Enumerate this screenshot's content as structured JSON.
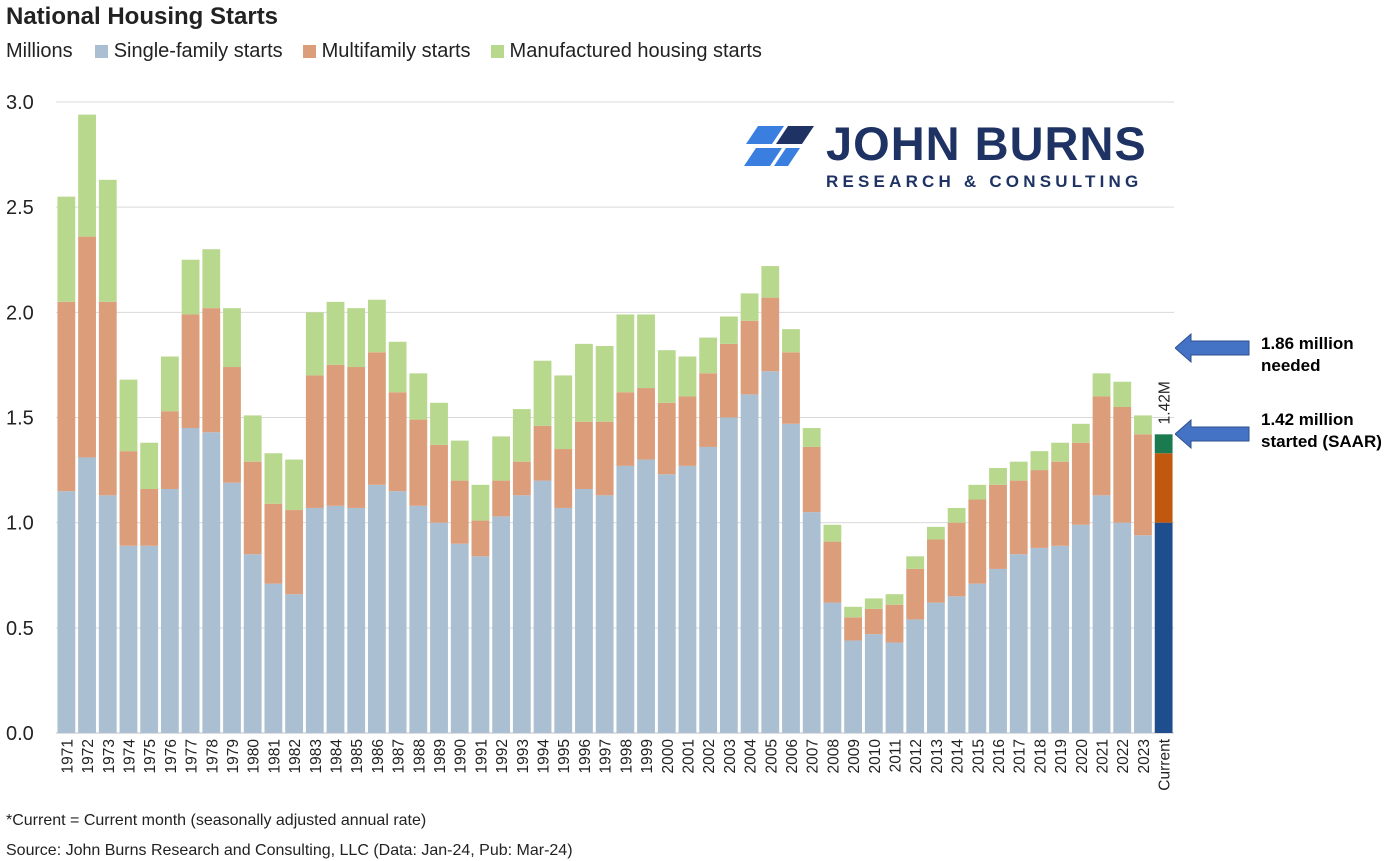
{
  "page": {
    "title": "National Housing Starts",
    "unit_label": "Millions",
    "footnote": "*Current = Current month (seasonally adjusted annual rate)",
    "source": "Source: John Burns Research and Consulting, LLC (Data: Jan-24, Pub: Mar-24)"
  },
  "logo": {
    "name": "JOHN BURNS",
    "subtitle": "RESEARCH & CONSULTING"
  },
  "annotations": {
    "needed_line1": "1.86 million",
    "needed_line2": "needed",
    "started_line1": "1.42 million",
    "started_line2": "started (SAAR)",
    "current_label": "1.42M"
  },
  "colors": {
    "single_family": "#aabfd1",
    "multifamily": "#dc9d7a",
    "manufactured": "#b8d88e",
    "current_single": "#1f4e8e",
    "current_multi": "#c0580f",
    "current_manufactured": "#1b7a50",
    "arrow": "#4472c4",
    "logo_accent": "#3a7fe0"
  },
  "chart_data": {
    "type": "bar",
    "stacked": true,
    "title": "National Housing Starts",
    "ylabel": "Millions",
    "ylim": [
      0,
      3.0
    ],
    "yticks": [
      "0.0",
      "0.5",
      "1.0",
      "1.5",
      "2.0",
      "2.5",
      "3.0"
    ],
    "grid": true,
    "legend_position": "top-left",
    "categories": [
      "1971",
      "1972",
      "1973",
      "1974",
      "1975",
      "1976",
      "1977",
      "1978",
      "1979",
      "1980",
      "1981",
      "1982",
      "1983",
      "1984",
      "1985",
      "1986",
      "1987",
      "1988",
      "1989",
      "1990",
      "1991",
      "1992",
      "1993",
      "1994",
      "1995",
      "1996",
      "1997",
      "1998",
      "1999",
      "2000",
      "2001",
      "2002",
      "2003",
      "2004",
      "2005",
      "2006",
      "2007",
      "2008",
      "2009",
      "2010",
      "2011",
      "2012",
      "2013",
      "2014",
      "2015",
      "2016",
      "2017",
      "2018",
      "2019",
      "2020",
      "2021",
      "2022",
      "2023",
      "Current"
    ],
    "series": [
      {
        "name": "Single-family starts",
        "values": [
          1.15,
          1.31,
          1.13,
          0.89,
          0.89,
          1.16,
          1.45,
          1.43,
          1.19,
          0.85,
          0.71,
          0.66,
          1.07,
          1.08,
          1.07,
          1.18,
          1.15,
          1.08,
          1.0,
          0.9,
          0.84,
          1.03,
          1.13,
          1.2,
          1.07,
          1.16,
          1.13,
          1.27,
          1.3,
          1.23,
          1.27,
          1.36,
          1.5,
          1.61,
          1.72,
          1.47,
          1.05,
          0.62,
          0.44,
          0.47,
          0.43,
          0.54,
          0.62,
          0.65,
          0.71,
          0.78,
          0.85,
          0.88,
          0.89,
          0.99,
          1.13,
          1.0,
          0.94,
          1.0
        ]
      },
      {
        "name": "Multifamily starts",
        "values": [
          0.9,
          1.05,
          0.92,
          0.45,
          0.27,
          0.37,
          0.54,
          0.59,
          0.55,
          0.44,
          0.38,
          0.4,
          0.63,
          0.67,
          0.67,
          0.63,
          0.47,
          0.41,
          0.37,
          0.3,
          0.17,
          0.17,
          0.16,
          0.26,
          0.28,
          0.32,
          0.35,
          0.35,
          0.34,
          0.34,
          0.33,
          0.35,
          0.35,
          0.35,
          0.35,
          0.34,
          0.31,
          0.29,
          0.11,
          0.12,
          0.18,
          0.24,
          0.3,
          0.35,
          0.4,
          0.4,
          0.35,
          0.37,
          0.4,
          0.39,
          0.47,
          0.55,
          0.48,
          0.33
        ]
      },
      {
        "name": "Manufactured housing starts",
        "values": [
          0.5,
          0.58,
          0.58,
          0.34,
          0.22,
          0.26,
          0.26,
          0.28,
          0.28,
          0.22,
          0.24,
          0.24,
          0.3,
          0.3,
          0.28,
          0.25,
          0.24,
          0.22,
          0.2,
          0.19,
          0.17,
          0.21,
          0.25,
          0.31,
          0.35,
          0.37,
          0.36,
          0.37,
          0.35,
          0.25,
          0.19,
          0.17,
          0.13,
          0.13,
          0.15,
          0.11,
          0.09,
          0.08,
          0.05,
          0.05,
          0.05,
          0.06,
          0.06,
          0.07,
          0.07,
          0.08,
          0.09,
          0.09,
          0.09,
          0.09,
          0.11,
          0.12,
          0.09,
          0.09
        ]
      }
    ],
    "reference_values": {
      "needed": 1.86,
      "started": 1.42
    }
  }
}
